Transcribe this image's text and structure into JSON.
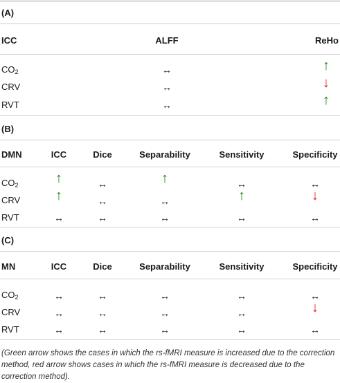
{
  "sections": {
    "a": {
      "label": "(A)",
      "headers": [
        "ICC",
        "ALFF",
        "ReHo"
      ],
      "rows": [
        {
          "label": "CO",
          "sub": "2",
          "alff": "↔",
          "reho": "↑"
        },
        {
          "label": "CRV",
          "alff": "↔",
          "reho": "↓"
        },
        {
          "label": "RVT",
          "alff": "↔",
          "reho": "↑"
        }
      ]
    },
    "b": {
      "label": "(B)",
      "headers": [
        "DMN",
        "ICC",
        "Dice",
        "Separability",
        "Sensitivity",
        "Specificity"
      ],
      "rows": [
        {
          "label": "CO",
          "sub": "2",
          "cells": [
            "↑",
            "↔",
            "↑",
            "↔",
            "↔"
          ]
        },
        {
          "label": "CRV",
          "cells": [
            "↑",
            "↔",
            "↔",
            "↑",
            "↓"
          ]
        },
        {
          "label": "RVT",
          "cells": [
            "↔",
            "↔",
            "↔",
            "↔",
            "↔"
          ]
        }
      ]
    },
    "c": {
      "label": "(C)",
      "headers": [
        "MN",
        "ICC",
        "Dice",
        "Separability",
        "Sensitivity",
        "Specificity"
      ],
      "rows": [
        {
          "label": "CO",
          "sub": "2",
          "cells": [
            "↔",
            "↔",
            "↔",
            "↔",
            "↔"
          ]
        },
        {
          "label": "CRV",
          "cells": [
            "↔",
            "↔",
            "↔",
            "↔",
            "↓"
          ]
        },
        {
          "label": "RVT",
          "cells": [
            "↔",
            "↔",
            "↔",
            "↔",
            "↔"
          ]
        }
      ]
    }
  },
  "note": "(Green arrow shows the cases in which the rs-fMRI measure is increased due to the correction method, red arrow shows cases in which the rs-fMRI measure is decreased due to the correction method).",
  "colors": {
    "increase": "#1a8a1a",
    "decrease": "#e01b1b",
    "neutral": "#222222"
  }
}
